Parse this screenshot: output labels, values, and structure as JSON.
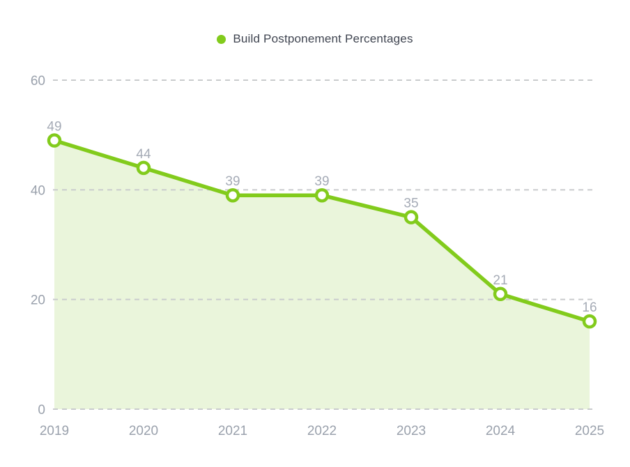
{
  "legend": {
    "label": "Build Postponement Percentages"
  },
  "colors": {
    "line": "#82CB1C",
    "area_fill": "#EAF5DB",
    "marker_fill": "#FFFFFF",
    "grid": "#C9CBCD",
    "axis_label": "#9AA1AC",
    "data_label": "#A5ABB6",
    "legend_text": "#3F4450",
    "background": "#FFFFFF"
  },
  "chart_data": {
    "type": "area",
    "title": "Build Postponement Percentages",
    "categories": [
      "2019",
      "2020",
      "2021",
      "2022",
      "2023",
      "2024",
      "2025"
    ],
    "values": [
      49,
      44,
      39,
      39,
      35,
      21,
      16
    ],
    "xlabel": "",
    "ylabel": "",
    "ylim": [
      0,
      60
    ],
    "yticks": [
      0,
      20,
      40,
      60
    ],
    "grid": "horizontal-dashed",
    "legend_position": "top-center",
    "point_labels": true
  }
}
